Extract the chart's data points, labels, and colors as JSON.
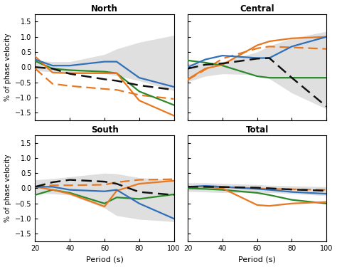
{
  "periods": [
    20,
    30,
    40,
    60,
    67,
    80,
    100
  ],
  "titles": [
    "North",
    "Central",
    "South",
    "Total"
  ],
  "ylabel": "% of phase velocity",
  "xlabel": "Period (s)",
  "xlim": [
    20,
    100
  ],
  "ylim": [
    -1.75,
    1.75
  ],
  "yticks": [
    -1.5,
    -1.0,
    -0.5,
    0.0,
    0.5,
    1.0,
    1.5
  ],
  "xticks": [
    20,
    40,
    60,
    80,
    100
  ],
  "shading_upper": {
    "North": [
      0.22,
      0.18,
      0.18,
      0.42,
      0.6,
      0.82,
      1.05
    ],
    "Central": [
      0.12,
      0.12,
      0.18,
      0.5,
      0.7,
      0.95,
      1.18
    ],
    "South": [
      0.28,
      0.32,
      0.38,
      0.5,
      0.48,
      0.35,
      0.28
    ],
    "Total": [
      0.18,
      0.18,
      0.16,
      0.12,
      0.1,
      0.08,
      0.05
    ]
  },
  "shading_lower": {
    "North": [
      -0.12,
      -0.15,
      -0.18,
      -0.22,
      -0.28,
      -0.45,
      -0.78
    ],
    "Central": [
      -0.48,
      -0.3,
      -0.22,
      -0.25,
      -0.38,
      -0.85,
      -1.38
    ],
    "South": [
      -0.18,
      -0.18,
      -0.22,
      -0.65,
      -0.9,
      -1.02,
      -1.1
    ],
    "Total": [
      -0.1,
      -0.12,
      -0.14,
      -0.14,
      -0.14,
      -0.18,
      -0.24
    ]
  },
  "blue_solid": {
    "North": [
      0.25,
      0.05,
      0.05,
      0.18,
      0.18,
      -0.35,
      -0.65
    ],
    "Central": [
      0.0,
      0.25,
      0.38,
      0.3,
      0.3,
      0.68,
      1.0
    ],
    "South": [
      0.05,
      0.05,
      -0.05,
      -0.1,
      -0.05,
      -0.5,
      -1.0
    ],
    "Total": [
      0.05,
      0.08,
      0.05,
      -0.02,
      -0.05,
      -0.12,
      -0.18
    ]
  },
  "orange_solid": {
    "North": [
      0.35,
      -0.18,
      -0.2,
      -0.2,
      -0.2,
      -1.1,
      -1.6
    ],
    "Central": [
      -0.4,
      -0.05,
      0.08,
      0.72,
      0.85,
      0.95,
      1.0
    ],
    "South": [
      0.05,
      -0.05,
      -0.18,
      -0.6,
      -0.08,
      0.15,
      0.25
    ],
    "Total": [
      0.05,
      0.05,
      0.0,
      -0.55,
      -0.58,
      -0.5,
      -0.45
    ]
  },
  "green_solid": {
    "North": [
      0.2,
      -0.05,
      -0.1,
      -0.15,
      -0.2,
      -0.8,
      -1.25
    ],
    "Central": [
      0.22,
      0.15,
      0.05,
      -0.3,
      -0.35,
      -0.35,
      -0.35
    ],
    "South": [
      -0.22,
      -0.05,
      -0.15,
      -0.5,
      -0.3,
      -0.35,
      -0.2
    ],
    "Total": [
      0.0,
      -0.02,
      -0.05,
      -0.15,
      -0.22,
      -0.38,
      -0.5
    ]
  },
  "black_dashed": {
    "North": [
      0.0,
      -0.05,
      -0.22,
      -0.4,
      -0.45,
      -0.6,
      -0.75
    ],
    "Central": [
      -0.05,
      0.08,
      0.12,
      0.28,
      0.3,
      -0.35,
      -1.3
    ],
    "South": [
      0.05,
      0.2,
      0.28,
      0.22,
      0.15,
      -0.12,
      -0.22
    ],
    "Total": [
      0.05,
      0.05,
      0.04,
      0.02,
      0.0,
      -0.04,
      -0.08
    ]
  },
  "orange_dashed": {
    "North": [
      -0.05,
      -0.55,
      -0.62,
      -0.72,
      -0.75,
      -0.92,
      -1.05
    ],
    "Central": [
      -0.42,
      -0.08,
      0.28,
      0.62,
      0.68,
      0.65,
      0.6
    ],
    "South": [
      0.05,
      0.1,
      0.1,
      0.12,
      0.2,
      0.28,
      0.3
    ],
    "Total": [
      0.05,
      0.05,
      0.04,
      0.0,
      -0.02,
      -0.03,
      -0.05
    ]
  },
  "colors": {
    "blue": "#3070b8",
    "orange": "#e87820",
    "green": "#2a8a2a",
    "black": "#111111",
    "shading": "#c0c0c0"
  },
  "linewidth": 1.6,
  "shading_alpha": 0.5
}
